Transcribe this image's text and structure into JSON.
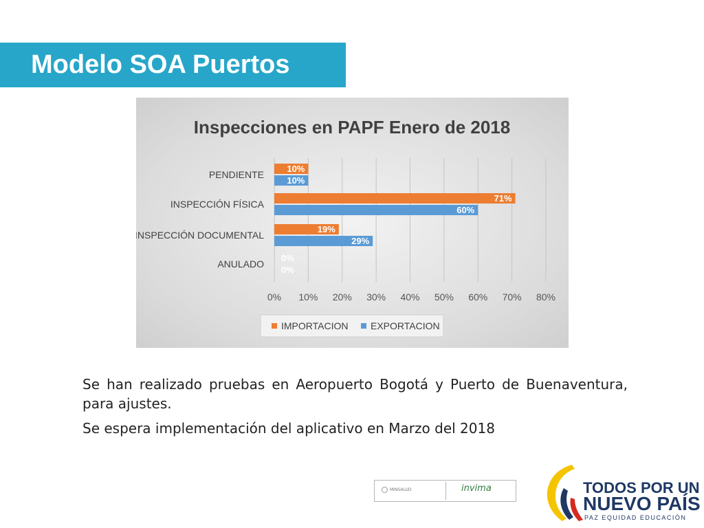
{
  "slide": {
    "title": "Modelo SOA Puertos",
    "bullets": [
      "Se han realizado pruebas en Aeropuerto Bogotá y Puerto de Buenaventura, para ajustes.",
      "Se espera implementación del aplicativo en Marzo del 2018"
    ]
  },
  "footer": {
    "logo_left": "MINSALUD",
    "logo_right": "invima",
    "brand_line1": "TODOS POR UN",
    "brand_line2": "NUEVO PAÍS",
    "brand_line3": "PAZ  EQUIDAD  EDUCACIÓN"
  },
  "colors": {
    "title_bar": "#27a6c9",
    "importacion": "#ed7d31",
    "exportacion": "#5b9bd5",
    "brand_blue": "#1f3864"
  },
  "chart_data": {
    "type": "bar",
    "orientation": "horizontal",
    "title": "Inspecciones en PAPF Enero de 2018",
    "categories": [
      "PENDIENTE",
      "INSPECCIÓN FÍSICA",
      "INSPECCIÓN DOCUMENTAL",
      "ANULADO"
    ],
    "series": [
      {
        "name": "IMPORTACION",
        "values": [
          10,
          71,
          19,
          0
        ],
        "labels": [
          "10%",
          "71%",
          "19%",
          "0%"
        ],
        "color": "#ed7d31"
      },
      {
        "name": "EXPORTACION",
        "values": [
          10,
          60,
          29,
          0
        ],
        "labels": [
          "10%",
          "60%",
          "29%",
          "0%"
        ],
        "color": "#5b9bd5"
      }
    ],
    "xlim": [
      0,
      80
    ],
    "xticks": [
      0,
      10,
      20,
      30,
      40,
      50,
      60,
      70,
      80
    ],
    "tick_labels": [
      "0%",
      "10%",
      "20%",
      "30%",
      "40%",
      "50%",
      "60%",
      "70%",
      "80%"
    ],
    "grid": true,
    "legend_position": "bottom"
  }
}
